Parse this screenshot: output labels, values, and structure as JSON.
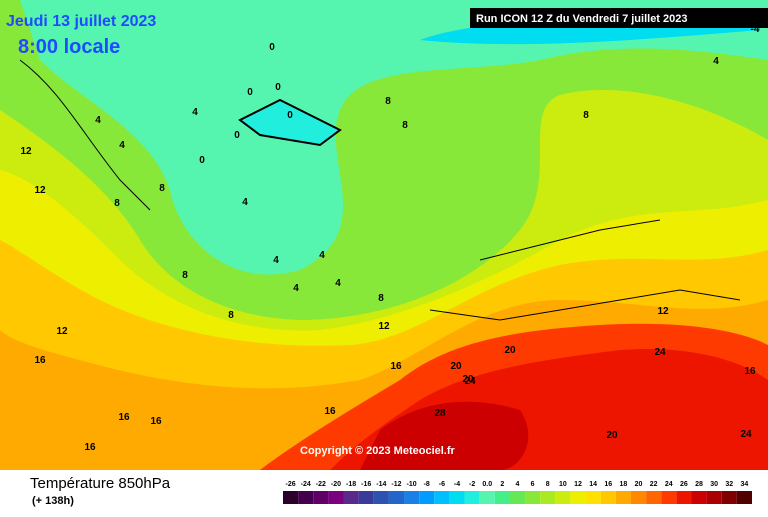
{
  "header": {
    "date": "Jeudi 13 juillet 2023",
    "time": "8:00 locale",
    "run": "Run ICON 12 Z du Vendredi 7 juillet 2023"
  },
  "copyright": "Copyright © 2023 Meteociel.fr",
  "footer": {
    "title": "Température 850hPa",
    "lead": "(+ 138h)"
  },
  "legend": {
    "labels": [
      "-26",
      "-24",
      "-22",
      "-20",
      "-18",
      "-16",
      "-14",
      "-12",
      "-10",
      "-8",
      "-6",
      "-4",
      "-2",
      "0.0",
      "2",
      "4",
      "6",
      "8",
      "10",
      "12",
      "14",
      "16",
      "18",
      "20",
      "22",
      "24",
      "26",
      "28",
      "30",
      "32",
      "34"
    ],
    "colors": [
      "#2b002b",
      "#45004d",
      "#600066",
      "#7a0080",
      "#5a2a8a",
      "#3a3a99",
      "#2e52b0",
      "#2266cc",
      "#1a80e6",
      "#009cff",
      "#00bfff",
      "#00dcf0",
      "#22eedd",
      "#55f5b0",
      "#44ee88",
      "#66e855",
      "#88e83a",
      "#aaea22",
      "#ccec10",
      "#eeee00",
      "#ffe000",
      "#ffc800",
      "#ffaa00",
      "#ff8800",
      "#ff6600",
      "#ff3a00",
      "#ee1500",
      "#cc0000",
      "#aa0000",
      "#800000",
      "#500000"
    ]
  },
  "contour_labels": [
    "0",
    "0",
    "0",
    "0",
    "0",
    "0",
    "4",
    "4",
    "4",
    "4",
    "4",
    "4",
    "4",
    "4",
    "8",
    "8",
    "8",
    "8",
    "8",
    "8",
    "8",
    "12",
    "12",
    "12",
    "12",
    "16",
    "16",
    "16",
    "16",
    "16",
    "20",
    "20",
    "20",
    "20",
    "24",
    "24",
    "24",
    "28",
    "-4",
    "4",
    "8",
    "12",
    "16",
    "16"
  ]
}
